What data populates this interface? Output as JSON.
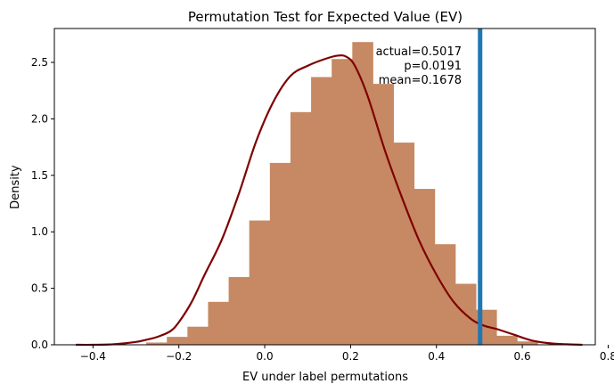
{
  "chart_data": {
    "type": "bar",
    "title": "Permutation Test for Expected Value (EV)",
    "xlabel": "EV under label permutations",
    "ylabel": "Density",
    "xlim": [
      -0.49,
      0.77
    ],
    "ylim": [
      0,
      2.8
    ],
    "x_ticks": [
      -0.4,
      -0.2,
      0.0,
      0.2,
      0.4,
      0.6,
      0.8
    ],
    "x_tick_labels": [
      "−0.4",
      "−0.2",
      "0.0",
      "0.2",
      "0.4",
      "0.6",
      "0.8"
    ],
    "y_ticks": [
      0.0,
      0.5,
      1.0,
      1.5,
      2.0,
      2.5
    ],
    "y_tick_labels": [
      "0.0",
      "0.5",
      "1.0",
      "1.5",
      "2.0",
      "2.5"
    ],
    "grid": false,
    "histogram": {
      "color": "#c68963",
      "bin_edges": [
        -0.276,
        -0.228,
        -0.18,
        -0.132,
        -0.084,
        -0.036,
        0.012,
        0.06,
        0.108,
        0.156,
        0.204,
        0.252,
        0.3,
        0.348,
        0.396,
        0.444,
        0.492,
        0.54,
        0.588,
        0.636
      ],
      "densities": [
        0.02,
        0.07,
        0.16,
        0.38,
        0.6,
        1.1,
        1.61,
        2.06,
        2.37,
        2.53,
        2.68,
        2.31,
        1.79,
        1.38,
        0.89,
        0.54,
        0.31,
        0.08,
        0.03
      ]
    },
    "kde": {
      "color": "#7f0000",
      "x": [
        -0.44,
        -0.4,
        -0.35,
        -0.3,
        -0.27,
        -0.25,
        -0.22,
        -0.2,
        -0.17,
        -0.14,
        -0.1,
        -0.06,
        -0.02,
        0.02,
        0.06,
        0.1,
        0.14,
        0.17,
        0.19,
        0.21,
        0.24,
        0.28,
        0.32,
        0.36,
        0.4,
        0.44,
        0.48,
        0.51,
        0.54,
        0.58,
        0.62,
        0.66,
        0.7,
        0.74
      ],
      "y": [
        0.0,
        0.0,
        0.005,
        0.025,
        0.05,
        0.07,
        0.12,
        0.2,
        0.38,
        0.62,
        0.93,
        1.34,
        1.8,
        2.15,
        2.38,
        2.47,
        2.53,
        2.56,
        2.55,
        2.47,
        2.2,
        1.72,
        1.3,
        0.92,
        0.62,
        0.38,
        0.23,
        0.17,
        0.14,
        0.09,
        0.04,
        0.015,
        0.005,
        0.0
      ]
    },
    "actual_line": {
      "x": 0.5017,
      "color": "#1f77b4"
    },
    "annotation_lines": [
      "actual=0.5017",
      "p=0.0191",
      "mean=0.1678"
    ]
  }
}
